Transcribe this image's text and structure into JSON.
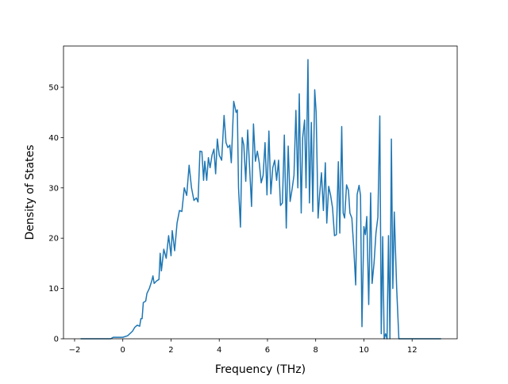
{
  "chart_data": {
    "type": "line",
    "xlabel": "Frequency (THz)",
    "ylabel": "Density of States",
    "x": [
      -1.75,
      -0.5,
      -0.4,
      0,
      0.2,
      0.4,
      0.5,
      0.6,
      0.7,
      0.75,
      0.8,
      0.85,
      0.95,
      1.0,
      1.1,
      1.2,
      1.25,
      1.3,
      1.4,
      1.5,
      1.55,
      1.6,
      1.7,
      1.8,
      1.9,
      2.0,
      2.05,
      2.15,
      2.25,
      2.35,
      2.45,
      2.55,
      2.65,
      2.75,
      2.85,
      2.95,
      3.05,
      3.12,
      3.2,
      3.28,
      3.35,
      3.4,
      3.48,
      3.55,
      3.62,
      3.7,
      3.78,
      3.85,
      3.92,
      4.0,
      4.1,
      4.2,
      4.28,
      4.36,
      4.44,
      4.5,
      4.6,
      4.7,
      4.75,
      4.8,
      4.88,
      4.95,
      5.02,
      5.1,
      5.18,
      5.26,
      5.34,
      5.42,
      5.5,
      5.58,
      5.66,
      5.74,
      5.82,
      5.9,
      5.98,
      6.06,
      6.14,
      6.22,
      6.3,
      6.38,
      6.46,
      6.54,
      6.62,
      6.7,
      6.78,
      6.86,
      6.94,
      7.02,
      7.1,
      7.18,
      7.26,
      7.32,
      7.4,
      7.46,
      7.54,
      7.6,
      7.68,
      7.74,
      7.82,
      7.88,
      7.96,
      8.02,
      8.1,
      8.16,
      8.24,
      8.32,
      8.4,
      8.46,
      8.54,
      8.62,
      8.7,
      8.78,
      8.86,
      8.94,
      9.0,
      9.08,
      9.14,
      9.2,
      9.28,
      9.36,
      9.42,
      9.5,
      9.58,
      9.66,
      9.72,
      9.8,
      9.86,
      9.92,
      10.0,
      10.06,
      10.12,
      10.2,
      10.28,
      10.34,
      10.42,
      10.5,
      10.58,
      10.66,
      10.72,
      10.78,
      10.84,
      10.9,
      10.96,
      11.02,
      11.08,
      11.14,
      11.2,
      11.26,
      11.36,
      11.45,
      11.6,
      13.2
    ],
    "series": [
      {
        "color": "#1f77b4",
        "values": [
          0,
          0,
          0.3,
          0.3,
          0.6,
          1.5,
          2.3,
          2.7,
          2.5,
          4,
          4,
          7.2,
          7.5,
          9,
          10,
          11.5,
          12.5,
          11,
          11.5,
          11.8,
          17,
          13.5,
          17.8,
          16,
          20.5,
          16.5,
          21.5,
          17.5,
          23,
          25.5,
          25.3,
          30,
          28.5,
          34.5,
          30,
          27.5,
          28,
          27.2,
          37.3,
          37.2,
          31.5,
          35.3,
          31.5,
          36,
          34,
          36.5,
          37.7,
          32.8,
          39.7,
          36.5,
          35.5,
          44.4,
          39,
          38,
          38.5,
          35,
          47.2,
          45,
          45.5,
          30,
          22.2,
          40,
          38.5,
          31.3,
          41.5,
          34,
          26.3,
          42.7,
          35.3,
          37.3,
          35,
          31,
          32.5,
          39,
          28.6,
          41.3,
          28.8,
          34,
          35.5,
          31.5,
          35.5,
          26.5,
          27,
          40.5,
          22,
          38.3,
          27.3,
          29.7,
          32.5,
          45.4,
          30,
          48.7,
          25,
          40,
          43.5,
          30,
          55.5,
          27,
          43,
          25.3,
          49.5,
          45,
          24,
          28.5,
          33,
          25.5,
          35,
          23,
          30.3,
          28.5,
          26,
          20.5,
          20.7,
          35.2,
          21,
          42.2,
          25,
          24,
          30.6,
          29.5,
          25,
          24,
          18,
          10.7,
          28.7,
          30.5,
          28.5,
          2.4,
          22.3,
          20.7,
          24.3,
          6.8,
          29,
          11,
          15,
          21,
          24.2,
          44.3,
          1,
          20.3,
          0,
          1,
          0,
          20.5,
          0,
          39.7,
          10,
          25.2,
          10,
          0,
          0,
          0
        ]
      }
    ],
    "xlim": [
      -2.46,
      13.87
    ],
    "ylim": [
      0,
      58.2
    ],
    "xticks": [
      {
        "value": -2,
        "label": "−2"
      },
      0,
      2,
      4,
      6,
      8,
      10,
      12
    ],
    "yticks": [
      0,
      10,
      20,
      30,
      40,
      50
    ]
  }
}
